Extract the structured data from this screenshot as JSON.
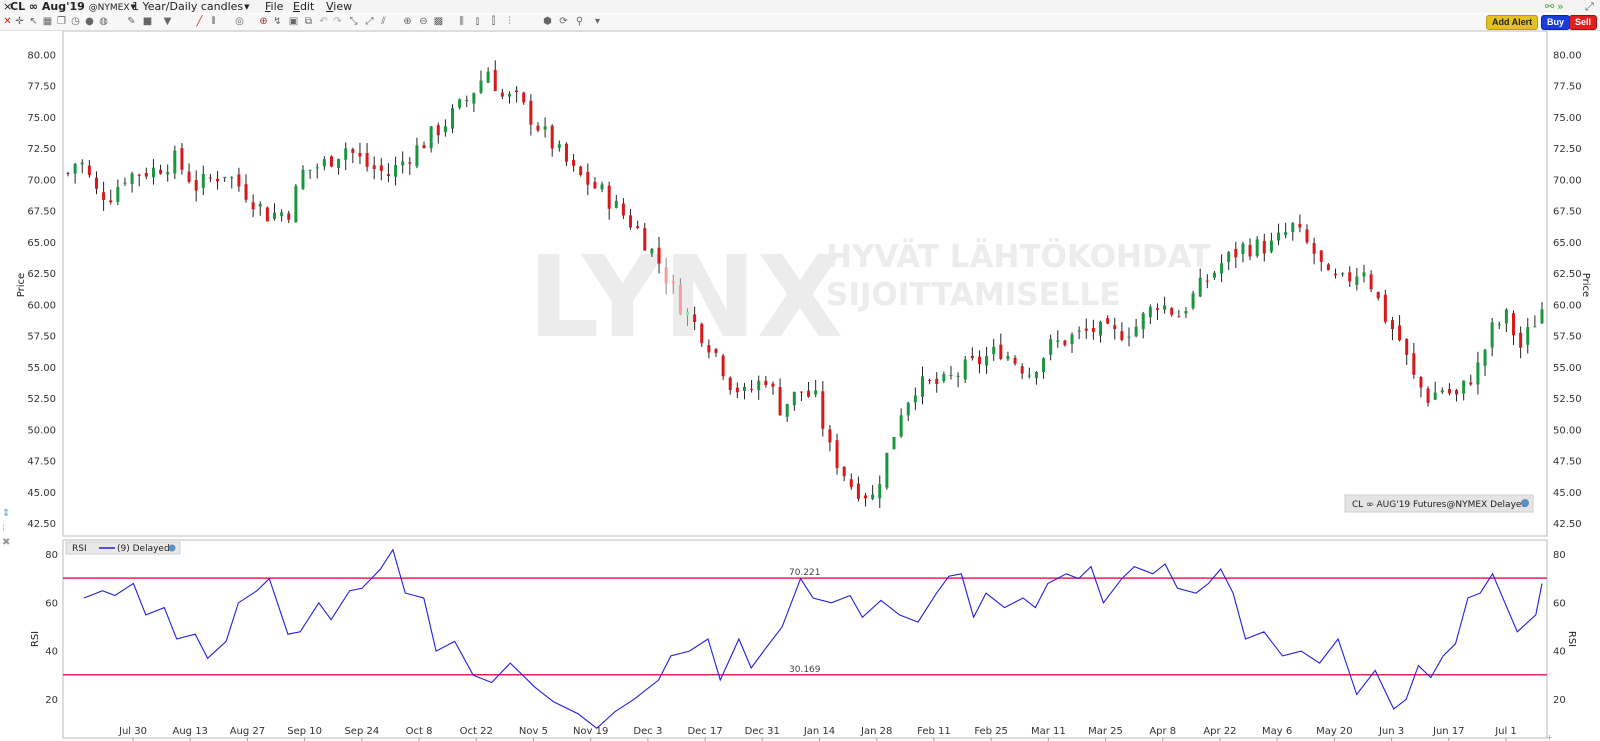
{
  "menubar": {
    "close_glyph": "×",
    "symbol": "CL ∞ Aug'19",
    "exchange": "@NYMEX",
    "period": "1 Year/Daily candles",
    "menus": [
      "File",
      "Edit",
      "View"
    ]
  },
  "toolbar": {
    "icons": [
      "close-icon",
      "crosshair-icon",
      "pointer-icon",
      "grid-icon",
      "copy-icon",
      "clock-icon",
      "circle-icon",
      "bar-icon",
      "square-icon",
      "filter-icon",
      "trendline-icon",
      "fib-icon",
      "annotation-icon",
      "target-icon",
      "ruler-icon",
      "print-icon",
      "undo-icon",
      "redo-icon",
      "measure-icon",
      "arrow-icon",
      "zoom-in-icon",
      "zoom-out-icon",
      "fit-icon",
      "link-icon",
      "split-icon",
      "settings-icon",
      "chain-icon",
      "dropdown-icon"
    ],
    "add_alert_label": "Add Alert",
    "buy_label": "Buy",
    "sell_label": "Sell"
  },
  "watermark": {
    "logo": "LYNX",
    "tagline_1": "HYVÄT LÄHTÖKOHDAT",
    "tagline_2": "SIJOITTAMISELLE"
  },
  "price_panel": {
    "y_title": "Price",
    "info_box": "CL ∞ AUG'19 Futures@NYMEX Delayed"
  },
  "rsi_panel": {
    "label": "RSI",
    "params": "(9) Delayed",
    "y_title": "RSI",
    "upper_level": "70.221",
    "lower_level": "30.169"
  },
  "colors": {
    "up": "#1a9641",
    "down": "#d7191c",
    "up_light": "#9be3b0",
    "down_light": "#f4a0a0",
    "rsi_line": "#2020e0",
    "rsi_levels": "#e0245e"
  },
  "chart_data": {
    "type": "candlestick",
    "instrument": "CL ∞ Aug'19",
    "x_ticks": [
      "Jul 30",
      "Aug 13",
      "Aug 27",
      "Sep 10",
      "Sep 24",
      "Oct 8",
      "Oct 22",
      "Nov 5",
      "Nov 19",
      "Dec 3",
      "Dec 17",
      "Dec 31",
      "Jan 14",
      "Jan 28",
      "Feb 11",
      "Feb 25",
      "Mar 11",
      "Mar 25",
      "Apr 8",
      "Apr 22",
      "May 6",
      "May 20",
      "Jun 3",
      "Jun 17",
      "Jul 1"
    ],
    "price_axis": {
      "ticks": [
        "80.00",
        "77.50",
        "75.00",
        "72.50",
        "70.00",
        "67.50",
        "65.00",
        "62.50",
        "60.00",
        "57.50",
        "55.00",
        "52.50",
        "50.00",
        "47.50",
        "45.00",
        "42.50"
      ],
      "range": [
        41.5,
        81.9
      ]
    },
    "price_path": [
      [
        0,
        70.5
      ],
      [
        3,
        71.8
      ],
      [
        8,
        69.0
      ],
      [
        12,
        68.8
      ],
      [
        16,
        70.3
      ],
      [
        24,
        70.8
      ],
      [
        30,
        71.6
      ],
      [
        36,
        69.5
      ],
      [
        44,
        70.6
      ],
      [
        50,
        69.0
      ],
      [
        56,
        67.2
      ],
      [
        62,
        67.5
      ],
      [
        66,
        70.6
      ],
      [
        72,
        71.3
      ],
      [
        78,
        72.6
      ],
      [
        84,
        71.1
      ],
      [
        90,
        70.4
      ],
      [
        96,
        72.0
      ],
      [
        100,
        73.0
      ],
      [
        106,
        74.6
      ],
      [
        112,
        76.4
      ],
      [
        118,
        78.8
      ],
      [
        122,
        76.6
      ],
      [
        126,
        76.4
      ],
      [
        134,
        73.6
      ],
      [
        142,
        70.6
      ],
      [
        150,
        69.0
      ],
      [
        160,
        66.0
      ],
      [
        166,
        63.4
      ],
      [
        172,
        60.0
      ],
      [
        178,
        57.7
      ],
      [
        182,
        56.1
      ],
      [
        186,
        53.8
      ],
      [
        190,
        52.8
      ],
      [
        196,
        54.2
      ],
      [
        200,
        51.8
      ],
      [
        206,
        53.1
      ],
      [
        210,
        52.4
      ],
      [
        214,
        48.4
      ],
      [
        220,
        45.6
      ],
      [
        226,
        44.6
      ],
      [
        230,
        47.9
      ],
      [
        234,
        51.6
      ],
      [
        238,
        53.5
      ],
      [
        246,
        53.7
      ],
      [
        252,
        54.9
      ],
      [
        262,
        56.4
      ],
      [
        270,
        54.6
      ],
      [
        276,
        56.7
      ],
      [
        282,
        57.4
      ],
      [
        288,
        58.0
      ],
      [
        294,
        57.6
      ],
      [
        300,
        58.3
      ],
      [
        306,
        60.2
      ],
      [
        312,
        59.2
      ],
      [
        318,
        61.4
      ],
      [
        324,
        63.3
      ],
      [
        330,
        64.6
      ],
      [
        338,
        64.7
      ],
      [
        344,
        66.2
      ],
      [
        350,
        64.1
      ],
      [
        354,
        62.0
      ],
      [
        358,
        61.8
      ],
      [
        364,
        63.0
      ],
      [
        370,
        59.0
      ],
      [
        374,
        57.2
      ],
      [
        378,
        54.1
      ],
      [
        382,
        52.6
      ],
      [
        386,
        53.3
      ],
      [
        390,
        52.6
      ],
      [
        396,
        55.0
      ],
      [
        400,
        58.0
      ],
      [
        404,
        59.0
      ],
      [
        408,
        56.6
      ],
      [
        412,
        58.7
      ],
      [
        414,
        59.7
      ]
    ],
    "rsi_axis": {
      "ticks": [
        "80",
        "60",
        "40",
        "20"
      ],
      "range": [
        4,
        86
      ]
    },
    "rsi_levels": [
      70.221,
      30.169
    ],
    "rsi_series": [
      [
        0,
        62
      ],
      [
        6,
        65
      ],
      [
        10,
        63
      ],
      [
        16,
        68
      ],
      [
        20,
        55
      ],
      [
        26,
        58
      ],
      [
        30,
        45
      ],
      [
        36,
        47
      ],
      [
        40,
        37
      ],
      [
        46,
        44
      ],
      [
        50,
        60
      ],
      [
        56,
        65
      ],
      [
        60,
        70
      ],
      [
        66,
        47
      ],
      [
        70,
        48
      ],
      [
        76,
        60
      ],
      [
        80,
        53
      ],
      [
        86,
        65
      ],
      [
        90,
        66
      ],
      [
        96,
        74
      ],
      [
        100,
        82
      ],
      [
        104,
        64
      ],
      [
        110,
        62
      ],
      [
        114,
        40
      ],
      [
        120,
        44
      ],
      [
        126,
        30
      ],
      [
        132,
        27
      ],
      [
        138,
        35
      ],
      [
        146,
        25
      ],
      [
        152,
        19
      ],
      [
        160,
        14
      ],
      [
        166,
        8
      ],
      [
        172,
        15
      ],
      [
        178,
        20
      ],
      [
        186,
        28
      ],
      [
        190,
        38
      ],
      [
        196,
        40
      ],
      [
        202,
        45
      ],
      [
        206,
        28
      ],
      [
        212,
        45
      ],
      [
        216,
        33
      ],
      [
        220,
        40
      ],
      [
        226,
        50
      ],
      [
        232,
        70
      ],
      [
        236,
        62
      ],
      [
        242,
        60
      ],
      [
        248,
        63
      ],
      [
        252,
        54
      ],
      [
        258,
        61
      ],
      [
        264,
        55
      ],
      [
        270,
        52
      ],
      [
        276,
        64
      ],
      [
        280,
        71
      ],
      [
        284,
        72
      ],
      [
        288,
        54
      ],
      [
        292,
        64
      ],
      [
        298,
        58
      ],
      [
        304,
        62
      ],
      [
        308,
        58
      ],
      [
        312,
        68
      ],
      [
        318,
        72
      ],
      [
        322,
        70
      ],
      [
        326,
        75
      ],
      [
        330,
        60
      ],
      [
        336,
        70
      ],
      [
        340,
        75
      ],
      [
        346,
        72
      ],
      [
        350,
        76
      ],
      [
        354,
        66
      ],
      [
        360,
        64
      ],
      [
        364,
        68
      ],
      [
        368,
        74
      ],
      [
        372,
        64
      ],
      [
        376,
        45
      ],
      [
        382,
        48
      ],
      [
        388,
        38
      ],
      [
        394,
        40
      ],
      [
        400,
        35
      ],
      [
        406,
        45
      ],
      [
        412,
        22
      ],
      [
        418,
        32
      ],
      [
        424,
        16
      ],
      [
        428,
        20
      ],
      [
        432,
        34
      ],
      [
        436,
        29
      ],
      [
        440,
        38
      ],
      [
        444,
        43
      ],
      [
        448,
        62
      ],
      [
        452,
        64
      ],
      [
        456,
        72
      ],
      [
        460,
        60
      ],
      [
        464,
        48
      ],
      [
        470,
        55
      ],
      [
        472,
        68
      ]
    ]
  }
}
